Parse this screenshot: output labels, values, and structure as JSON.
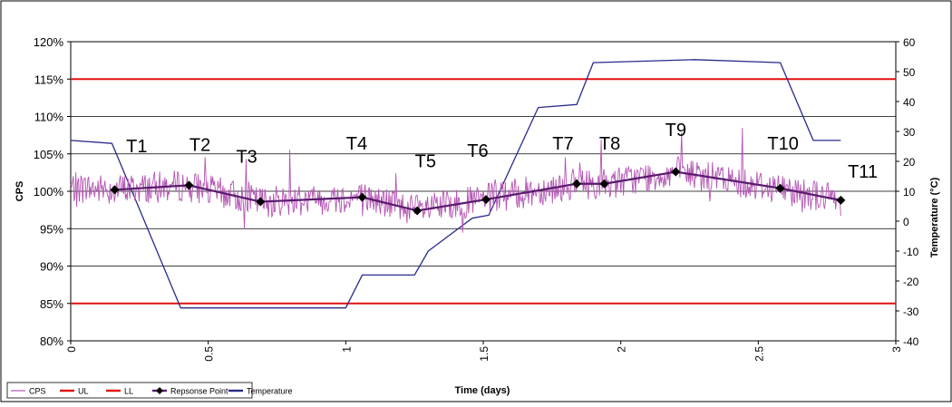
{
  "chart_data": {
    "type": "line",
    "xlabel": "Time (days)",
    "ylabel_left": "CPS",
    "ylabel_right": "Temperature (°C)",
    "xlim": [
      0,
      3
    ],
    "ylim_left": [
      80,
      120
    ],
    "ylim_right": [
      -40,
      60
    ],
    "x_ticks": [
      "0",
      "0.5",
      "1",
      "1.5",
      "2",
      "2.5",
      "3"
    ],
    "x_tick_values": [
      0,
      0.5,
      1,
      1.5,
      2,
      2.5,
      3
    ],
    "y_left_ticks": [
      "80%",
      "85%",
      "90%",
      "95%",
      "100%",
      "105%",
      "110%",
      "115%",
      "120%"
    ],
    "y_left_tick_values": [
      80,
      85,
      90,
      95,
      100,
      105,
      110,
      115,
      120
    ],
    "y_right_ticks": [
      "-40",
      "-30",
      "-20",
      "-10",
      "0",
      "10",
      "20",
      "30",
      "40",
      "50",
      "60"
    ],
    "y_right_tick_values": [
      -40,
      -30,
      -20,
      -10,
      0,
      10,
      20,
      30,
      40,
      50,
      60
    ],
    "grid": true,
    "legend": [
      {
        "label": "CPS",
        "color": "#b454b4",
        "marker": "none"
      },
      {
        "label": "UL",
        "color": "#e01010",
        "marker": "none"
      },
      {
        "label": "LL",
        "color": "#e01010",
        "marker": "none"
      },
      {
        "label": "Repsonse Point",
        "color": "#5a1a6e",
        "marker": "diamond"
      },
      {
        "label": "Temperature",
        "color": "#2a2a8c",
        "marker": "none"
      }
    ],
    "legend_placement": "bottom-left",
    "series": [
      {
        "name": "UL",
        "axis": "left",
        "color": "#e01010",
        "x": [
          0,
          3
        ],
        "y": [
          115,
          115
        ]
      },
      {
        "name": "LL",
        "axis": "left",
        "color": "#e01010",
        "x": [
          0,
          3
        ],
        "y": [
          85,
          85
        ]
      },
      {
        "name": "Temperature",
        "axis": "right",
        "color": "#2a2a8c",
        "x": [
          0,
          0.15,
          0.4,
          1.0,
          1.06,
          1.25,
          1.3,
          1.46,
          1.52,
          1.7,
          1.84,
          1.9,
          2.27,
          2.58,
          2.7,
          2.8
        ],
        "y": [
          27,
          26,
          -29,
          -29,
          -18,
          -18,
          -10,
          1,
          2,
          38,
          39,
          53,
          54,
          53,
          27,
          27
        ]
      },
      {
        "name": "CPS",
        "axis": "left",
        "color": "#b454b4",
        "x": [
          0,
          0.15,
          0.42,
          0.69,
          1.06,
          1.27,
          1.52,
          1.84,
          1.95,
          2.2,
          2.58,
          2.8
        ],
        "y": [
          100.5,
          100.2,
          100.8,
          98.6,
          99.2,
          97.4,
          99.0,
          101.0,
          101.0,
          102.6,
          100.4,
          98.8
        ],
        "noisy": true
      },
      {
        "name": "Repsonse Point",
        "axis": "left",
        "color": "#5a1a6e",
        "marker": "diamond",
        "x": [
          0.16,
          0.43,
          0.69,
          1.06,
          1.26,
          1.51,
          1.84,
          1.94,
          2.2,
          2.58,
          2.8
        ],
        "y": [
          100.2,
          100.8,
          98.6,
          99.2,
          97.4,
          98.9,
          101.0,
          101.0,
          102.6,
          100.4,
          98.8
        ],
        "labels": [
          "T1",
          "T2",
          "T3",
          "T4",
          "T5",
          "T6",
          "T7",
          "T8",
          "T9",
          "T10",
          "T11"
        ]
      }
    ],
    "annotations": [
      {
        "text": "T1",
        "x": 0.24,
        "y": 105.2
      },
      {
        "text": "T2",
        "x": 0.47,
        "y": 105.4
      },
      {
        "text": "T3",
        "x": 0.64,
        "y": 103.8
      },
      {
        "text": "T4",
        "x": 1.04,
        "y": 105.6
      },
      {
        "text": "T5",
        "x": 1.29,
        "y": 103.2
      },
      {
        "text": "T6",
        "x": 1.48,
        "y": 104.6
      },
      {
        "text": "T7",
        "x": 1.79,
        "y": 105.6
      },
      {
        "text": "T8",
        "x": 1.96,
        "y": 105.6
      },
      {
        "text": "T9",
        "x": 2.2,
        "y": 107.4
      },
      {
        "text": "T10",
        "x": 2.59,
        "y": 105.6
      },
      {
        "text": "T11",
        "x": 2.88,
        "y": 101.8
      }
    ]
  }
}
